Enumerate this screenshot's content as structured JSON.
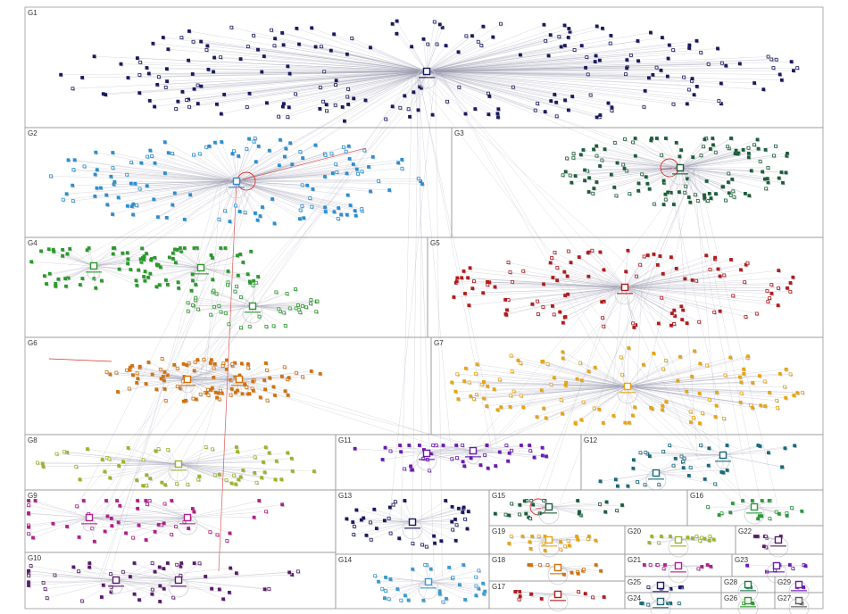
{
  "colors": {
    "background": "#ffffff",
    "box_border": "#9a9a9a",
    "edge": "#9c9cb0",
    "highlight_edge": "#d9302a"
  },
  "groups": [
    {
      "id": "G1",
      "label": "G1",
      "color": "#1a1a5e",
      "nodes": 230
    },
    {
      "id": "G2",
      "label": "G2",
      "color": "#2b8fd0",
      "nodes": 140
    },
    {
      "id": "G3",
      "label": "G3",
      "color": "#1d5e3a",
      "nodes": 130
    },
    {
      "id": "G4",
      "label": "G4",
      "color": "#2a9a2a",
      "nodes": 140
    },
    {
      "id": "G5",
      "label": "G5",
      "color": "#b01c1c",
      "nodes": 120
    },
    {
      "id": "G6",
      "label": "G6",
      "color": "#d0720d",
      "nodes": 110
    },
    {
      "id": "G7",
      "label": "G7",
      "color": "#e6a514",
      "nodes": 120
    },
    {
      "id": "G8",
      "label": "G8",
      "color": "#9ab52a",
      "nodes": 60
    },
    {
      "id": "G9",
      "label": "G9",
      "color": "#b0208a",
      "nodes": 55
    },
    {
      "id": "G10",
      "label": "G10",
      "color": "#5a1a6a",
      "nodes": 55
    },
    {
      "id": "G11",
      "label": "G11",
      "color": "#6a1ab0",
      "nodes": 45
    },
    {
      "id": "G12",
      "label": "G12",
      "color": "#1a6a7a",
      "nodes": 40
    },
    {
      "id": "G13",
      "label": "G13",
      "color": "#1a1a5e",
      "nodes": 40
    },
    {
      "id": "G14",
      "label": "G14",
      "color": "#3a9ad0",
      "nodes": 35
    },
    {
      "id": "G15",
      "label": "G15",
      "color": "#1a5e3a",
      "nodes": 25
    },
    {
      "id": "G16",
      "label": "G16",
      "color": "#2a9a3a",
      "nodes": 20
    },
    {
      "id": "G17",
      "label": "G17",
      "color": "#b01c1c",
      "nodes": 12
    },
    {
      "id": "G18",
      "label": "G18",
      "color": "#d0720d",
      "nodes": 12
    },
    {
      "id": "G19",
      "label": "G19",
      "color": "#e6a514",
      "nodes": 20
    },
    {
      "id": "G20",
      "label": "G20",
      "color": "#9ab52a",
      "nodes": 14
    },
    {
      "id": "G21",
      "label": "G21",
      "color": "#b0208a",
      "nodes": 10
    },
    {
      "id": "G22",
      "label": "G22",
      "color": "#5a1a6a",
      "nodes": 8
    },
    {
      "id": "G23",
      "label": "G23",
      "color": "#6a1ab0",
      "nodes": 8
    },
    {
      "id": "G24",
      "label": "G24",
      "color": "#1a6a7a",
      "nodes": 6
    },
    {
      "id": "G25",
      "label": "G25",
      "color": "#1a1a5e",
      "nodes": 6
    },
    {
      "id": "G26",
      "label": "G26",
      "color": "#2a9a2a",
      "nodes": 2
    },
    {
      "id": "G27",
      "label": "G27",
      "color": "#5a5a5a",
      "nodes": 2
    },
    {
      "id": "G28",
      "label": "G28",
      "color": "#1d7a4a",
      "nodes": 2
    },
    {
      "id": "G29",
      "label": "G29",
      "color": "#6a1ab0",
      "nodes": 2
    }
  ]
}
